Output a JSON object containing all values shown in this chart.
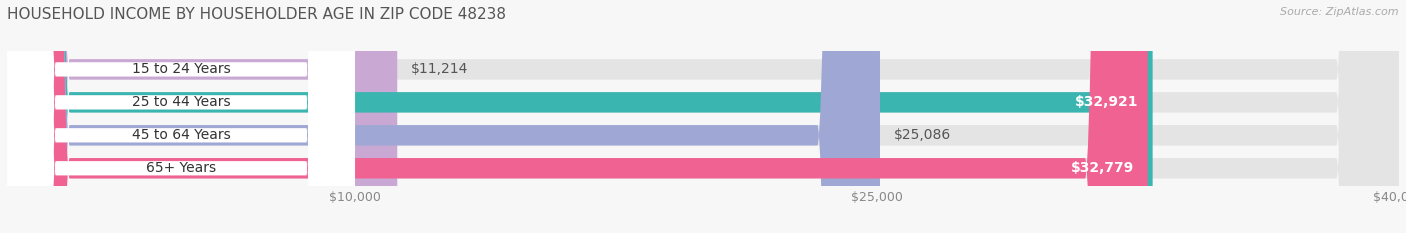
{
  "title": "HOUSEHOLD INCOME BY HOUSEHOLDER AGE IN ZIP CODE 48238",
  "source": "Source: ZipAtlas.com",
  "categories": [
    "15 to 24 Years",
    "25 to 44 Years",
    "45 to 64 Years",
    "65+ Years"
  ],
  "values": [
    11214,
    32921,
    25086,
    32779
  ],
  "bar_colors": [
    "#c9a8d4",
    "#3ab5b0",
    "#9fa8d4",
    "#f06292"
  ],
  "label_colors": [
    "#555555",
    "#ffffff",
    "#555555",
    "#ffffff"
  ],
  "xlim": [
    0,
    40000
  ],
  "xticks": [
    10000,
    25000,
    40000
  ],
  "xtick_labels": [
    "$10,000",
    "$25,000",
    "$40,000"
  ],
  "value_labels": [
    "$11,214",
    "$32,921",
    "$25,086",
    "$32,779"
  ],
  "bar_height": 0.62,
  "background_color": "#f7f7f7",
  "title_fontsize": 11,
  "label_fontsize": 10,
  "value_fontsize": 10
}
